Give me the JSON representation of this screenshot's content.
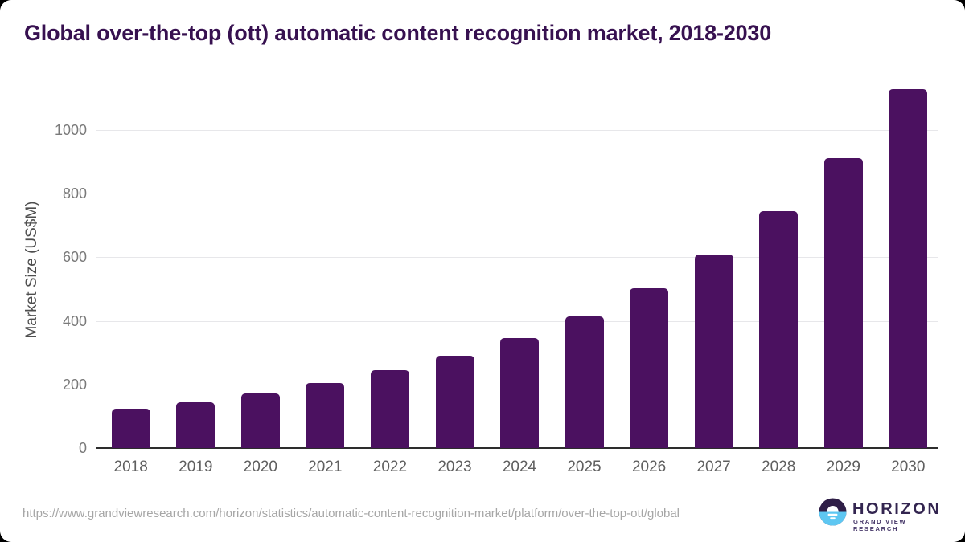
{
  "title": "Global over-the-top (ott) automatic content recognition market, 2018-2030",
  "chart_data": {
    "type": "bar",
    "title": "Global over-the-top (ott) automatic content recognition market, 2018-2030",
    "categories": [
      "2018",
      "2019",
      "2020",
      "2021",
      "2022",
      "2023",
      "2024",
      "2025",
      "2026",
      "2027",
      "2028",
      "2029",
      "2030"
    ],
    "values": [
      124,
      144,
      172,
      205,
      245,
      291,
      346,
      414,
      502,
      608,
      745,
      913,
      1128
    ],
    "xlabel": "",
    "ylabel": "Market Size (US$M)",
    "yticks": [
      0,
      200,
      400,
      600,
      800,
      1000
    ],
    "ylim": [
      0,
      1140
    ],
    "grid": true,
    "legend": "none",
    "bar_color": "#4b1160"
  },
  "colors": {
    "accent_purple": "#4b1160",
    "title_purple": "#371150",
    "gridline": "#e7e7ea",
    "axis_line": "#2d2d2d",
    "tick_gray": "#7a7a7a",
    "logo_dark": "#2f1e47",
    "logo_blue": "#5ec7f2"
  },
  "footer": {
    "source_url": "https://www.grandviewresearch.com/horizon/statistics/automatic-content-recognition-market/platform/over-the-top-ott/global",
    "logo_name": "HORIZON",
    "logo_subtitle": "GRAND VIEW RESEARCH"
  }
}
